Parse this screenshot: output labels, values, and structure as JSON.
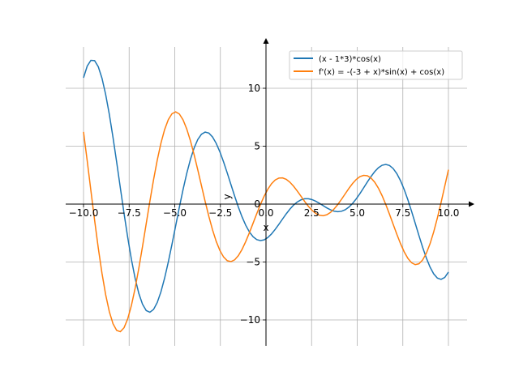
{
  "chart_data": {
    "type": "line",
    "title": "",
    "xlabel": "x",
    "ylabel": "y",
    "xlim": [
      -11,
      11
    ],
    "ylim": [
      -12.2,
      14.3
    ],
    "x_ticks": [
      -10.0,
      -7.5,
      -5.0,
      -2.5,
      0.0,
      2.5,
      5.0,
      7.5,
      10.0
    ],
    "x_tick_labels": [
      "−10.0",
      "−7.5",
      "−5.0",
      "−2.5",
      "0.0",
      "2.5",
      "5.0",
      "7.5",
      "10.0"
    ],
    "y_ticks": [
      -10,
      -5,
      0,
      5,
      10
    ],
    "y_tick_labels": [
      "−10",
      "−5",
      "0",
      "5",
      "10"
    ],
    "grid": true,
    "legend_position": "top-right",
    "x_domain": [
      -10,
      10
    ],
    "samples": 100,
    "series": [
      {
        "name": "(x - 1*3)*cos(x)",
        "function": "(x-3)*cos(x)",
        "color": "#1f77b4"
      },
      {
        "name": "f'(x) = -(-3 + x)*sin(x) + cos(x)",
        "function": "-(x-3)*sin(x)+cos(x)",
        "color": "#ff7f0e"
      }
    ]
  }
}
